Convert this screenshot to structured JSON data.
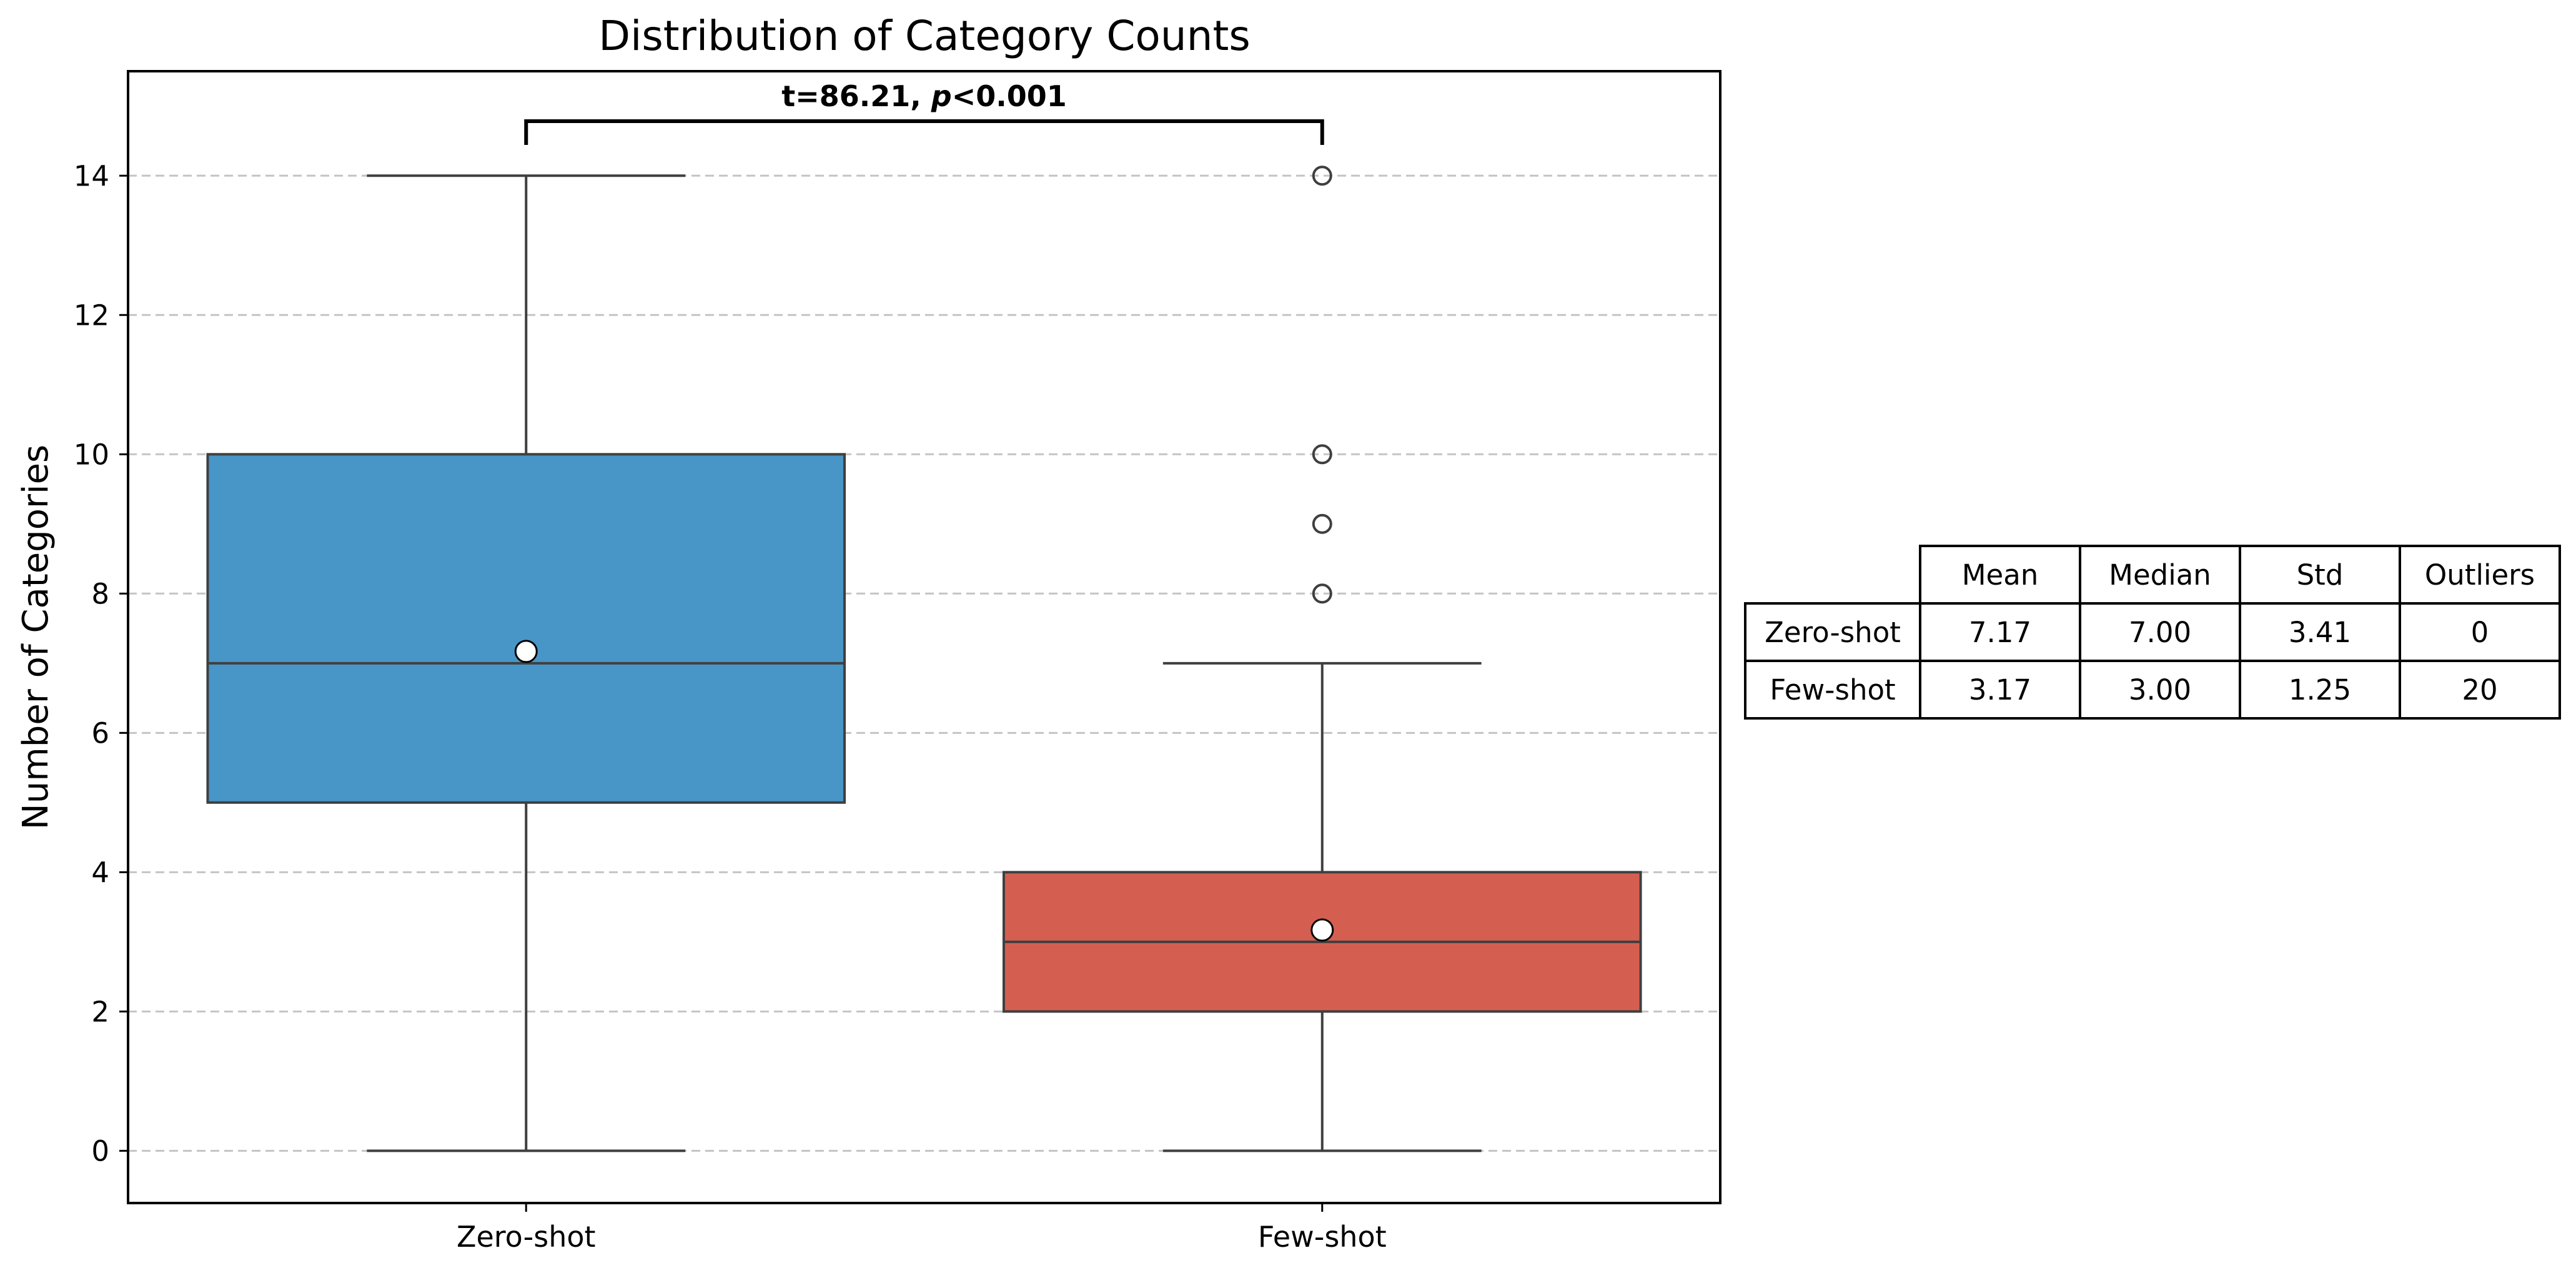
{
  "chart_data": {
    "type": "box",
    "title": "Distribution of Category Counts",
    "xlabel": "",
    "ylabel": "Number of Categories",
    "ylim": [
      -0.75,
      15.5
    ],
    "yticks": [
      0,
      2,
      4,
      6,
      8,
      10,
      12,
      14
    ],
    "grid": "y-dashed",
    "categories": [
      "Zero-shot",
      "Few-shot"
    ],
    "boxes": [
      {
        "category": "Zero-shot",
        "color": "#4895c7",
        "whisker_low": 0,
        "q1": 5,
        "median": 7,
        "q3": 10,
        "whisker_high": 14,
        "mean": 7.17,
        "outliers": []
      },
      {
        "category": "Few-shot",
        "color": "#d45f50",
        "whisker_low": 0,
        "q1": 2,
        "median": 3,
        "q3": 4,
        "whisker_high": 7,
        "mean": 3.17,
        "outliers": [
          8,
          9,
          10,
          14
        ]
      }
    ],
    "annotation": {
      "text_prefix": "t=86.21, ",
      "text_p": "p",
      "text_suffix": "<0.001",
      "between": [
        "Zero-shot",
        "Few-shot"
      ]
    }
  },
  "stats_table": {
    "columns": [
      "Mean",
      "Median",
      "Std",
      "Outliers"
    ],
    "rows": [
      {
        "label": "Zero-shot",
        "values": [
          "7.17",
          "7.00",
          "3.41",
          "0"
        ]
      },
      {
        "label": "Few-shot",
        "values": [
          "3.17",
          "3.00",
          "1.25",
          "20"
        ]
      }
    ]
  }
}
